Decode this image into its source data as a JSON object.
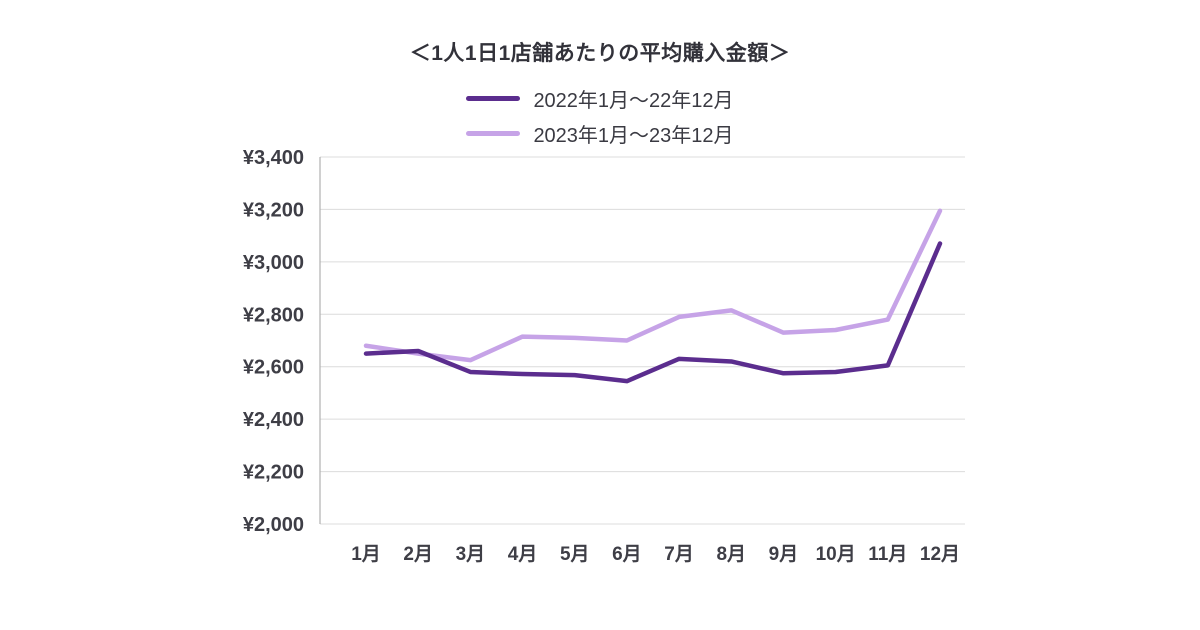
{
  "chart_data": {
    "type": "line",
    "title": "＜1人1日1店舗あたりの平均購入金額＞",
    "categories": [
      "1月",
      "2月",
      "3月",
      "4月",
      "5月",
      "6月",
      "7月",
      "8月",
      "9月",
      "10月",
      "11月",
      "12月"
    ],
    "series": [
      {
        "name": "2022年1月〜22年12月",
        "color": "#5B2D8E",
        "values": [
          2650,
          2660,
          2580,
          2572,
          2568,
          2545,
          2630,
          2620,
          2575,
          2580,
          2605,
          3070
        ]
      },
      {
        "name": "2023年1月〜23年12月",
        "color": "#C6A3E7",
        "values": [
          2680,
          2650,
          2625,
          2715,
          2710,
          2700,
          2790,
          2815,
          2730,
          2740,
          2780,
          3195
        ]
      }
    ],
    "ylim": [
      2000,
      3400
    ],
    "ytick_step": 200,
    "ytick_prefix": "¥",
    "grid": true,
    "grid_color": "#DCDCDC",
    "axis_color": "#B0B0B0",
    "legend_position": "top",
    "xlabel": "",
    "ylabel": ""
  }
}
